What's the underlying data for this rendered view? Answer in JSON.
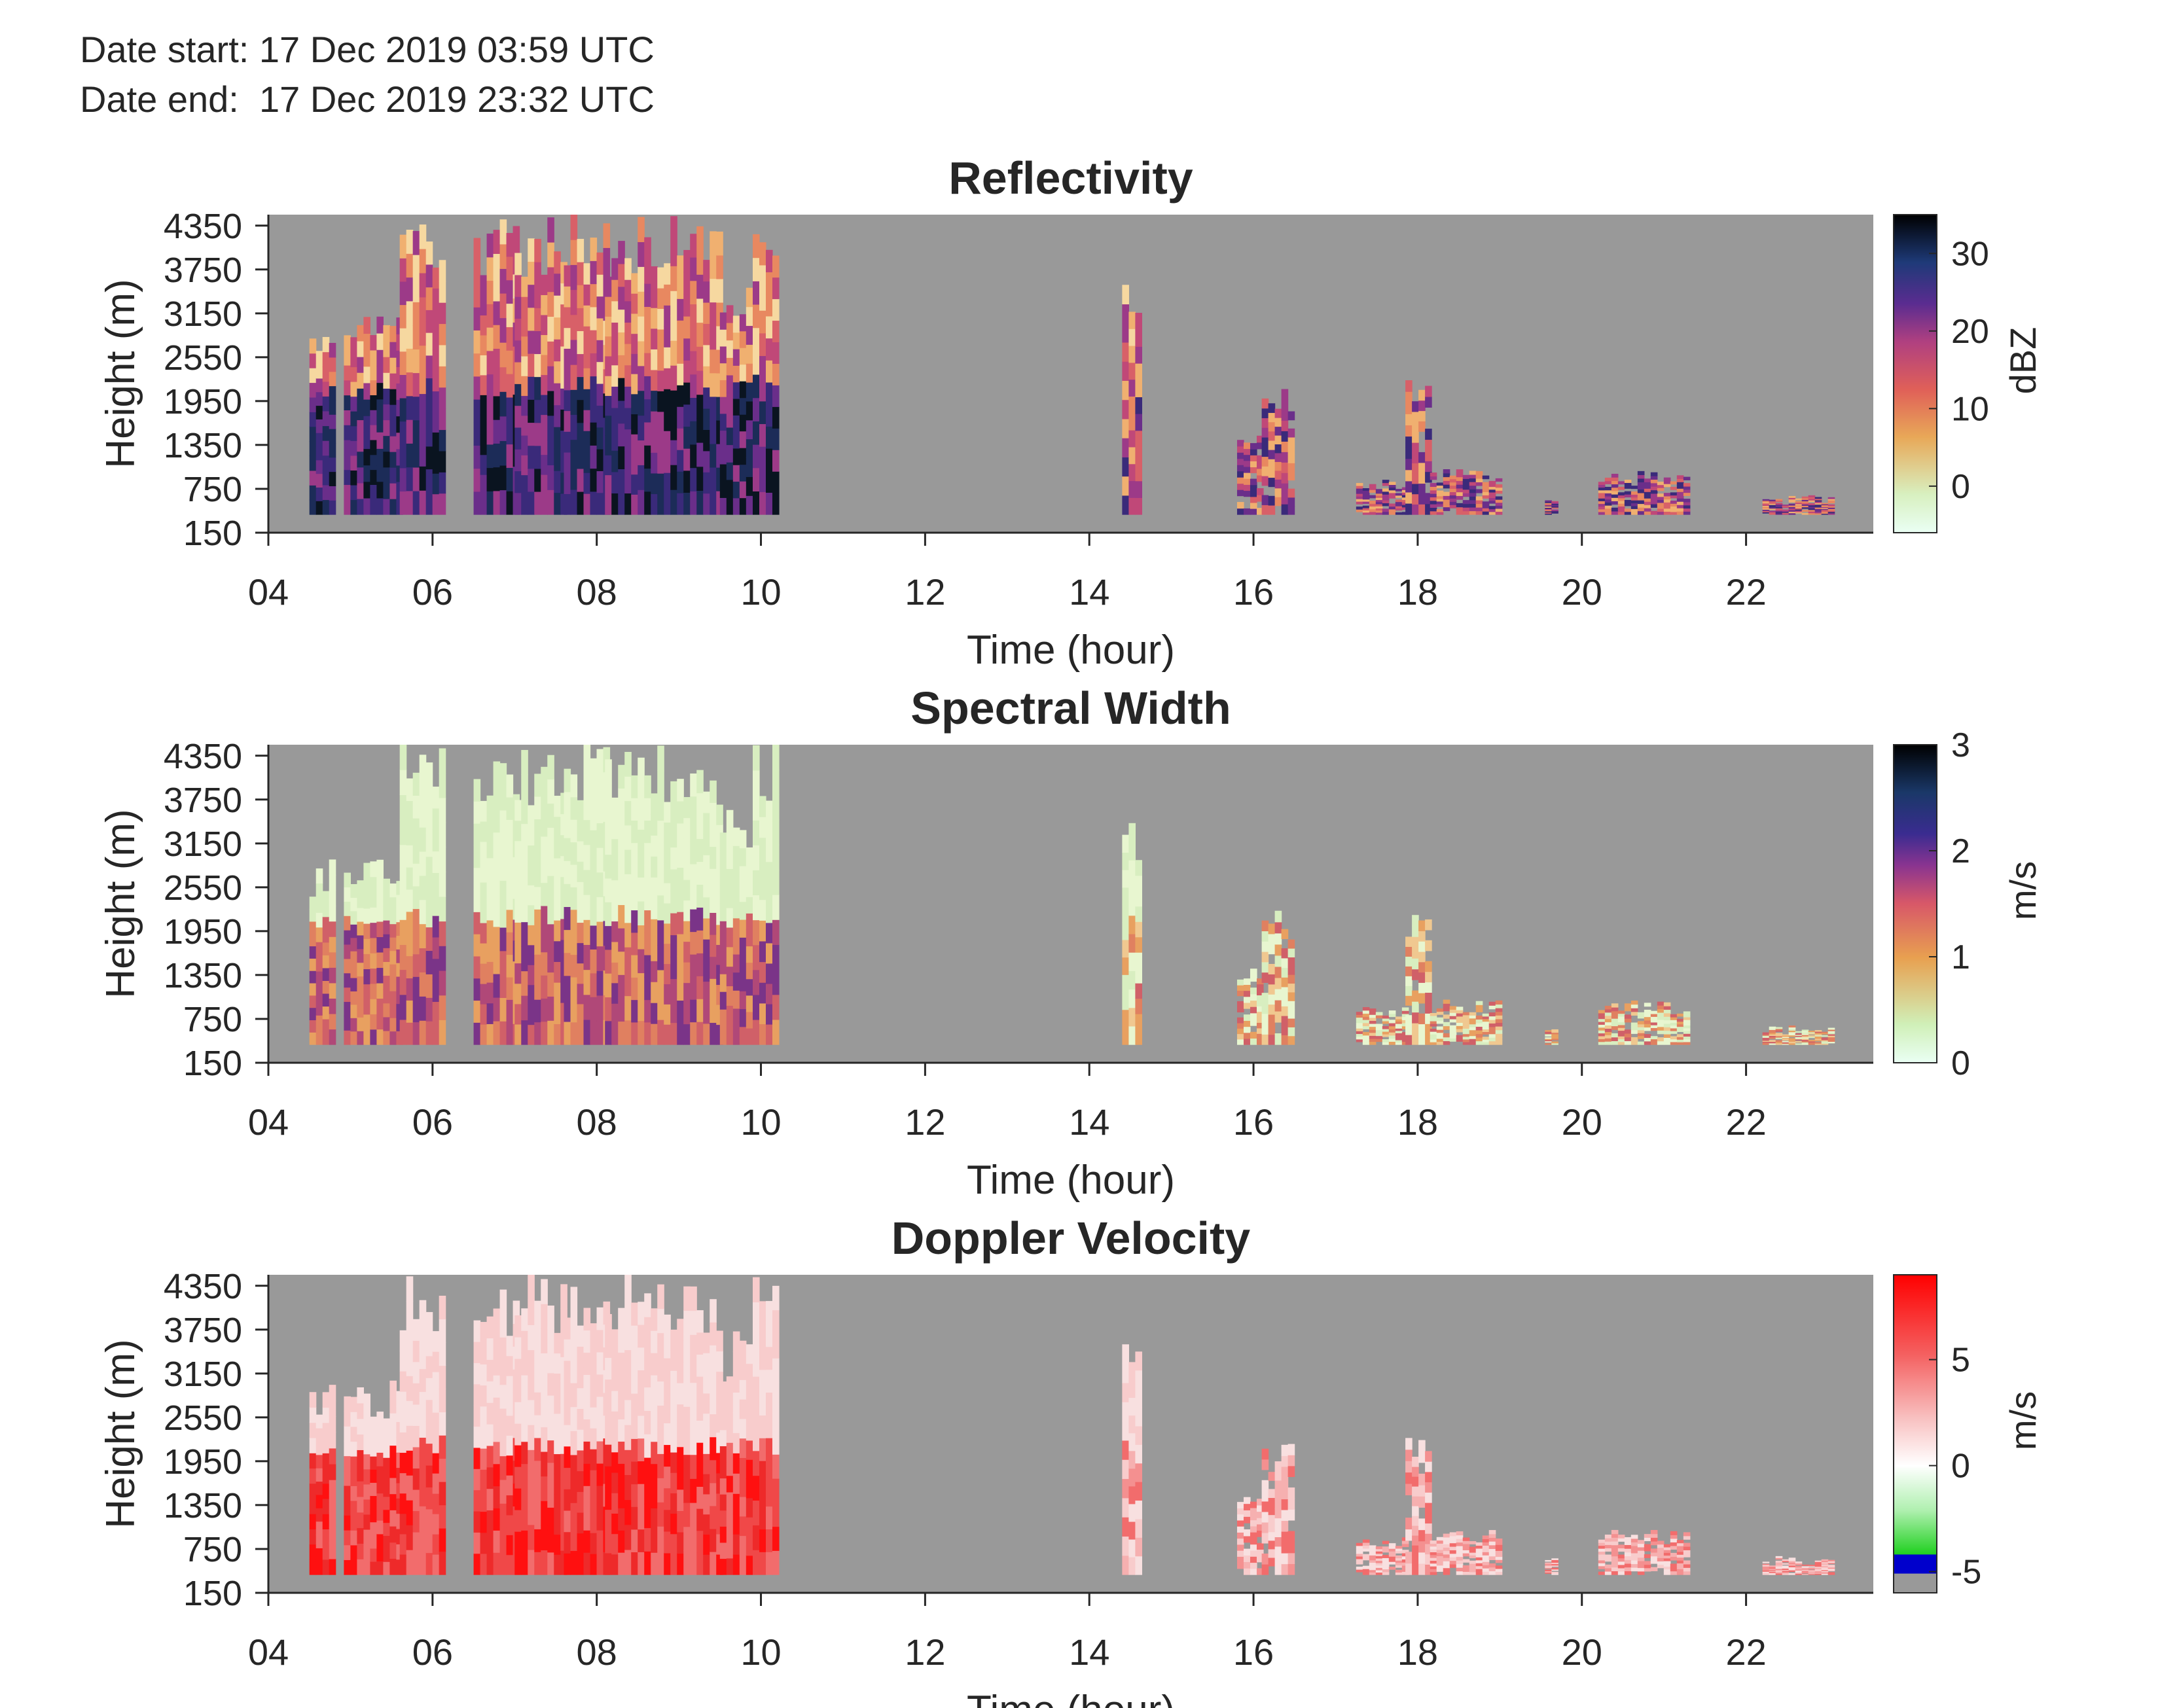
{
  "header": {
    "start_label": "Date start:",
    "start_value": "17 Dec 2019 03:59 UTC",
    "end_label": "Date end:",
    "end_value": "17 Dec 2019 23:32 UTC"
  },
  "chart_data": [
    {
      "type": "heatmap",
      "title": "Reflectivity",
      "xlabel": "Time (hour)",
      "ylabel": "Height (m)",
      "xlim": [
        4.0,
        23.55
      ],
      "ylim": [
        150,
        4500
      ],
      "xticks": [
        "04",
        "06",
        "08",
        "10",
        "12",
        "14",
        "16",
        "18",
        "20",
        "22"
      ],
      "yticks": [
        "150",
        "750",
        "1350",
        "1950",
        "2550",
        "3150",
        "3750",
        "4350"
      ],
      "colorbar": {
        "label": "dBZ",
        "range": [
          -6,
          35
        ],
        "ticks": [
          "0",
          "10",
          "20",
          "30"
        ],
        "colormap": "pink-to-black"
      },
      "background_color": "#999999"
    },
    {
      "type": "heatmap",
      "title": "Spectral Width",
      "xlabel": "Time (hour)",
      "ylabel": "Height (m)",
      "xlim": [
        4.0,
        23.55
      ],
      "ylim": [
        150,
        4500
      ],
      "xticks": [
        "04",
        "06",
        "08",
        "10",
        "12",
        "14",
        "16",
        "18",
        "20",
        "22"
      ],
      "yticks": [
        "150",
        "750",
        "1350",
        "1950",
        "2550",
        "3150",
        "3750",
        "4350"
      ],
      "colorbar": {
        "label": "m/s",
        "range": [
          0,
          3
        ],
        "ticks": [
          "0",
          "1",
          "2",
          "3"
        ],
        "colormap": "green-to-black"
      },
      "background_color": "#999999"
    },
    {
      "type": "heatmap",
      "title": "Doppler Velocity",
      "xlabel": "Time (hour)",
      "ylabel": "Height (m)",
      "xlim": [
        4.0,
        23.55
      ],
      "ylim": [
        150,
        4500
      ],
      "xticks": [
        "04",
        "06",
        "08",
        "10",
        "12",
        "14",
        "16",
        "18",
        "20",
        "22"
      ],
      "yticks": [
        "150",
        "750",
        "1350",
        "1950",
        "2550",
        "3150",
        "3750",
        "4350"
      ],
      "colorbar": {
        "label": "m/s",
        "range": [
          -6,
          9
        ],
        "ticks": [
          "-5",
          "0",
          "5"
        ],
        "colormap": "gray-blue-green-white-red"
      },
      "background_color": "#999999"
    }
  ],
  "echo_segments": [
    {
      "t0": 4.5,
      "t1": 4.8,
      "h1": 2950
    },
    {
      "t0": 4.92,
      "t1": 5.6,
      "h1": 3050
    },
    {
      "t0": 5.6,
      "t1": 6.15,
      "h1": 4450
    },
    {
      "t0": 6.5,
      "t1": 7.0,
      "h1": 4450
    },
    {
      "t0": 7.0,
      "t1": 7.6,
      "h1": 4450
    },
    {
      "t0": 7.6,
      "t1": 8.1,
      "h1": 4450
    },
    {
      "t0": 8.1,
      "t1": 9.5,
      "h1": 4450
    },
    {
      "t0": 9.5,
      "t1": 9.85,
      "h1": 3700
    },
    {
      "t0": 9.9,
      "t1": 10.2,
      "h1": 4500
    },
    {
      "t0": 14.4,
      "t1": 14.6,
      "h1": 3550
    },
    {
      "t0": 15.8,
      "t1": 16.1,
      "h1": 1500
    },
    {
      "t0": 16.1,
      "t1": 16.45,
      "h1": 2200
    },
    {
      "t0": 17.25,
      "t1": 17.85,
      "h1": 900
    },
    {
      "t0": 17.85,
      "t1": 18.15,
      "h1": 2300
    },
    {
      "t0": 18.15,
      "t1": 18.95,
      "h1": 1000
    },
    {
      "t0": 19.55,
      "t1": 19.7,
      "h1": 650
    },
    {
      "t0": 20.2,
      "t1": 21.3,
      "h1": 1000
    },
    {
      "t0": 22.2,
      "t1": 23.0,
      "h1": 650
    }
  ]
}
